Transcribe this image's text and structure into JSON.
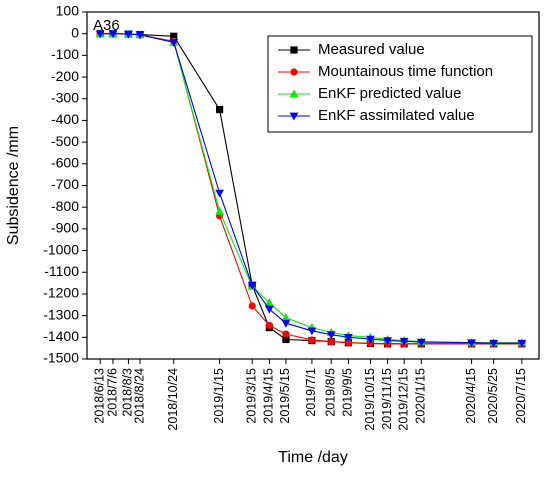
{
  "chart_data": {
    "type": "line",
    "panel_label": "A36",
    "xlabel": "Time /day",
    "ylabel": "Subsidence /mm",
    "ylim": [
      -1500,
      100
    ],
    "yticks": [
      100,
      0,
      -100,
      -200,
      -300,
      -400,
      -500,
      -600,
      -700,
      -800,
      -900,
      -1000,
      -1100,
      -1200,
      -1300,
      -1400,
      -1500
    ],
    "xlim": [
      "2018-05-20",
      "2020-08-15"
    ],
    "x": [
      "2018-06-13",
      "2018-07-06",
      "2018-08-03",
      "2018-08-24",
      "2018-10-24",
      "2019-01-15",
      "2019-03-15",
      "2019-04-15",
      "2019-05-15",
      "2019-07-01",
      "2019-08-05",
      "2019-09-05",
      "2019-10-15",
      "2019-11-15",
      "2019-12-15",
      "2020-01-15",
      "2020-04-15",
      "2020-05-25",
      "2020-07-15"
    ],
    "xtick_labels": [
      "2018/6/13",
      "2018/7/6",
      "2018/8/3",
      "2018/8/24",
      "2018/10/24",
      "2019/1/15",
      "2019/3/15",
      "2019/4/15",
      "2019/5/15",
      "2019/7/1",
      "2019/8/5",
      "2019/9/5",
      "2019/10/15",
      "2019/11/15",
      "2019/12/15",
      "2020/1/15",
      "2020/4/15",
      "2020/5/25",
      "2020/7/15"
    ],
    "legend_position": "top-right",
    "grid": false,
    "series": [
      {
        "name": "Measured value",
        "color": "#000000",
        "marker": "square",
        "values": [
          0,
          0,
          -2,
          -4,
          -12,
          -350,
          -1160,
          -1355,
          -1410,
          -1415,
          -1420,
          -1425,
          -1428,
          -1430,
          -1430,
          -1430,
          -1430,
          -1430,
          -1430
        ]
      },
      {
        "name": "Mountainous time function",
        "color": "#ff0000",
        "marker": "circle",
        "values": [
          0,
          0,
          -2,
          -5,
          -35,
          -840,
          -1255,
          -1345,
          -1385,
          -1412,
          -1420,
          -1425,
          -1428,
          -1430,
          -1430,
          -1430,
          -1430,
          -1430,
          -1430
        ]
      },
      {
        "name": "EnKF predicted value",
        "color": "#00ee00",
        "marker": "triangle-up",
        "values": [
          0,
          0,
          -2,
          -5,
          -40,
          -820,
          -1165,
          -1240,
          -1310,
          -1355,
          -1378,
          -1392,
          -1400,
          -1410,
          -1415,
          -1420,
          -1425,
          -1425,
          -1425
        ]
      },
      {
        "name": "EnKF assimilated value",
        "color": "#0000ff",
        "marker": "triangle-down",
        "values": [
          0,
          0,
          -2,
          -5,
          -40,
          -735,
          -1160,
          -1270,
          -1335,
          -1370,
          -1388,
          -1400,
          -1408,
          -1415,
          -1418,
          -1422,
          -1425,
          -1427,
          -1427
        ]
      }
    ]
  }
}
